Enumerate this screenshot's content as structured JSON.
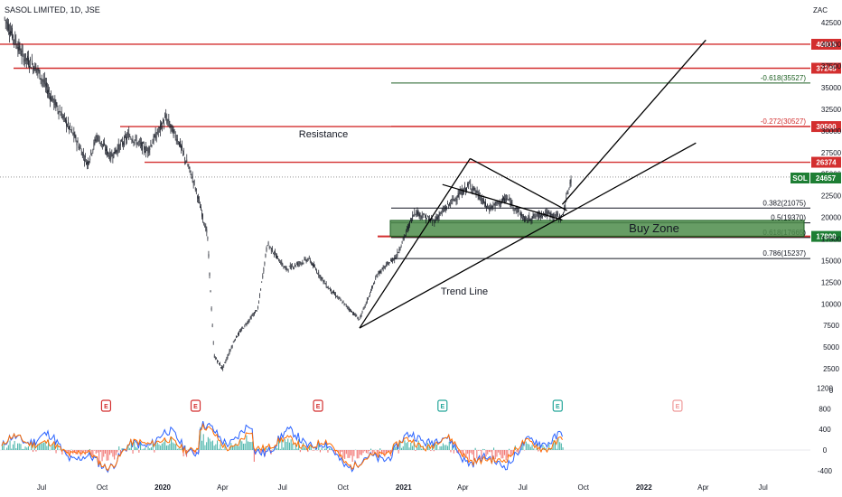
{
  "chart_data": {
    "type": "candlestick",
    "title": "SASOL LIMITED, 1D, JSE",
    "currency": "ZAC",
    "symbol": "SOL",
    "last_price": "24657",
    "x_ticks": [
      "Jul",
      "Oct",
      "2020",
      "Apr",
      "Jul",
      "Oct",
      "2021",
      "Apr",
      "Jul",
      "Oct",
      "2022",
      "Apr",
      "Jul"
    ],
    "y_ticks": [
      "42500",
      "40000",
      "37500",
      "35000",
      "32500",
      "30000",
      "27500",
      "25000",
      "22500",
      "20000",
      "17500",
      "15000",
      "12500",
      "10000",
      "7500",
      "5000",
      "2500",
      "0"
    ],
    "y_range": [
      0,
      43000
    ],
    "price_path": [
      [
        "2019-05-06",
        43000
      ],
      [
        "2019-06-03",
        38600
      ],
      [
        "2019-06-24",
        37200
      ],
      [
        "2019-07-15",
        34000
      ],
      [
        "2019-08-19",
        29500
      ],
      [
        "2019-09-09",
        26200
      ],
      [
        "2019-09-23",
        29400
      ],
      [
        "2019-10-14",
        27000
      ],
      [
        "2019-11-11",
        29500
      ],
      [
        "2019-12-09",
        27700
      ],
      [
        "2020-01-06",
        31500
      ],
      [
        "2020-01-27",
        28500
      ],
      [
        "2020-02-17",
        24200
      ],
      [
        "2020-03-09",
        18000
      ],
      [
        "2020-03-19",
        4000
      ],
      [
        "2020-04-01",
        2500
      ],
      [
        "2020-04-20",
        6000
      ],
      [
        "2020-05-25",
        9500
      ],
      [
        "2020-06-08",
        17000
      ],
      [
        "2020-07-06",
        14000
      ],
      [
        "2020-08-10",
        15200
      ],
      [
        "2020-09-07",
        12000
      ],
      [
        "2020-10-26",
        8200
      ],
      [
        "2020-11-23",
        13500
      ],
      [
        "2020-12-21",
        15500
      ],
      [
        "2021-01-18",
        20700
      ],
      [
        "2021-02-15",
        19500
      ],
      [
        "2021-03-15",
        21800
      ],
      [
        "2021-04-12",
        23800
      ],
      [
        "2021-05-10",
        21000
      ],
      [
        "2021-06-07",
        22200
      ],
      [
        "2021-07-05",
        19700
      ],
      [
        "2021-08-02",
        20500
      ],
      [
        "2021-08-30",
        20000
      ],
      [
        "2021-09-13",
        24657
      ]
    ],
    "horizontal_levels": [
      {
        "label": "40015",
        "value": 40015
      },
      {
        "label": "37245",
        "value": 37245
      },
      {
        "label": "30500",
        "value": 30500
      },
      {
        "label": "26374",
        "value": 26374
      },
      {
        "label": "17800",
        "value": 17800
      }
    ],
    "fib_levels": [
      {
        "label": "-0.618(35527)",
        "value": 35527
      },
      {
        "label": "-0.272(30527)",
        "value": 30527
      },
      {
        "label": "0.382(21075)",
        "value": 21075
      },
      {
        "label": "0.5(19370)",
        "value": 19370
      },
      {
        "label": "0.618(17665)",
        "value": 17665
      },
      {
        "label": "0.786(15237)",
        "value": 15237
      }
    ],
    "annotations": [
      "Resistance",
      "Buy Zone",
      "Trend Line"
    ],
    "buy_zone": [
      17800,
      19650
    ],
    "oscillator_ticks": [
      "1200",
      "800",
      "400",
      "0",
      "-400"
    ],
    "event_markers": [
      "E",
      "E",
      "E",
      "E",
      "E",
      "E"
    ]
  },
  "colors": {
    "resistance": "#d32f2f",
    "fib": "#1b5e20",
    "candle": "#131722",
    "buy_zone": "#4c8c4a",
    "last_price_badge": "#1e7e34",
    "histogram_up": "#26a69a",
    "histogram_down": "#ef5350",
    "signal_blue": "#2962ff",
    "signal_orange": "#ff6d00"
  }
}
